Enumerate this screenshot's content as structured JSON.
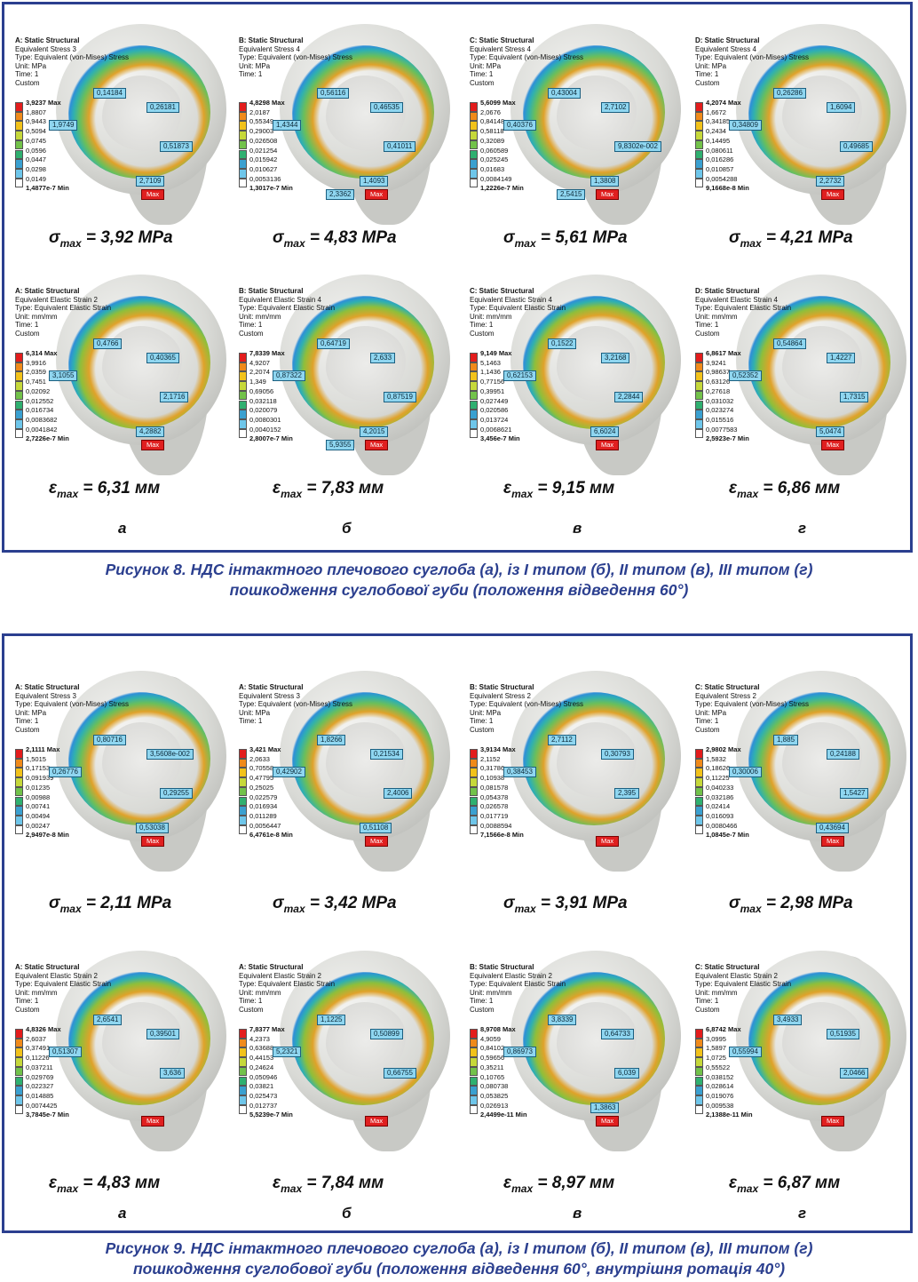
{
  "legend_colors": [
    "#e31c1c",
    "#f08a1a",
    "#f2c21a",
    "#c6d83a",
    "#72c24a",
    "#2fb070",
    "#3aa0d0",
    "#6ec6ea",
    "#ffffff"
  ],
  "fig8": {
    "panels": [
      {
        "title": "A: Static Structural",
        "result": "Equivalent Stress 3",
        "type": "Type: Equivalent (von-Mises) Stress",
        "unit": "Unit: MPa",
        "time": "Time: 1",
        "custom": "Custom",
        "levels": [
          "3,9237 Max",
          "1,8807",
          "0,9443",
          "0,5094",
          "0,0745",
          "0,0596",
          "0,0447",
          "0,0298",
          "0,0149",
          "1,4877e-7 Min"
        ],
        "probes": [
          "0,14184",
          "0,26181",
          "1,9749",
          "0,51873",
          "2,7109"
        ],
        "max_label": "Max",
        "formula_sym": "σ",
        "formula_sub": "max",
        "formula_val": "= 3,92 MPa"
      },
      {
        "title": "B: Static Structural",
        "result": "Equivalent Stress 4",
        "type": "Type: Equivalent (von-Mises) Stress",
        "unit": "Unit: MPa",
        "time": "Time: 1",
        "custom": "",
        "levels": [
          "4,8298 Max",
          "2,0187",
          "0,55349",
          "0,29003",
          "0,026508",
          "0,021254",
          "0,015942",
          "0,010627",
          "0,0053136",
          "1,3017e-7 Min"
        ],
        "probes": [
          "0,56116",
          "0,46535",
          "1,4344",
          "0,41011",
          "1,4093",
          "2,3362"
        ],
        "max_label": "Max",
        "formula_sym": "σ",
        "formula_sub": "max",
        "formula_val": "= 4,83 MPa"
      },
      {
        "title": "C: Static Structural",
        "result": "Equivalent Stress 4",
        "type": "Type: Equivalent (von-Mises) Stress",
        "unit": "Unit: MPa",
        "time": "Time: 1",
        "custom": "Custom",
        "levels": [
          "5,6099 Max",
          "2,0676",
          "0,84148",
          "0,58118",
          "0,32089",
          "0,060589",
          "0,025245",
          "0,01683",
          "0,0084149",
          "1,2226e-7 Min"
        ],
        "probes": [
          "0,43004",
          "2,7102",
          "0,40376",
          "9,8302e-002",
          "1,3808",
          "2,5415"
        ],
        "max_label": "Max",
        "formula_sym": "σ",
        "formula_sub": "max",
        "formula_val": "= 5,61 MPa"
      },
      {
        "title": "D: Static Structural",
        "result": "Equivalent Stress 4",
        "type": "Type: Equivalent (von-Mises) Stress",
        "unit": "Unit: MPa",
        "time": "Time: 1",
        "custom": "Custom",
        "levels": [
          "4,2074 Max",
          "1,6672",
          "0,34185",
          "0,2434",
          "0,14495",
          "0,080611",
          "0,016286",
          "0,010857",
          "0,0054288",
          "9,1668e-8 Min"
        ],
        "probes": [
          "0,26286",
          "1,6094",
          "0,34809",
          "0,49685",
          "2,2732"
        ],
        "max_label": "Max",
        "formula_sym": "σ",
        "formula_sub": "max",
        "formula_val": "= 4,21 MPa"
      },
      {
        "title": "A: Static Structural",
        "result": "Equivalent Elastic Strain 2",
        "type": "Type: Equivalent Elastic Strain",
        "unit": "Unit: mm/mm",
        "time": "Time: 1",
        "custom": "Custom",
        "levels": [
          "6,314 Max",
          "3,9916",
          "2,0359",
          "0,7451",
          "0,02092",
          "0,012552",
          "0,016734",
          "0,0083682",
          "0,0041842",
          "2,7226e-7 Min"
        ],
        "probes": [
          "0,4766",
          "0,40365",
          "3,1055",
          "2,1716",
          "4,2882"
        ],
        "max_label": "Max",
        "formula_sym": "ε",
        "formula_sub": "max",
        "formula_val": "= 6,31 мм"
      },
      {
        "title": "B: Static Structural",
        "result": "Equivalent Elastic Strain 4",
        "type": "Type: Equivalent Elastic Strain",
        "unit": "Unit: mm/mm",
        "time": "Time: 1",
        "custom": "Custom",
        "levels": [
          "7,8339 Max",
          "4,9207",
          "2,2074",
          "1,349",
          "0,69056",
          "0,032118",
          "0,020079",
          "0,0080301",
          "0,0040152",
          "2,8007e-7 Min"
        ],
        "probes": [
          "0,64719",
          "2,633",
          "0,87322",
          "0,87519",
          "4,2015",
          "5,9355"
        ],
        "max_label": "Max",
        "formula_sym": "ε",
        "formula_sub": "max",
        "formula_val": "= 7,83 мм"
      },
      {
        "title": "C: Static Structural",
        "result": "Equivalent Elastic Strain 4",
        "type": "Type: Equivalent Elastic Strain",
        "unit": "Unit: mm/mm",
        "time": "Time: 1",
        "custom": "Custom",
        "levels": [
          "9,149 Max",
          "5,1463",
          "1,1436",
          "0,77156",
          "0,39951",
          "0,027449",
          "0,020586",
          "0,013724",
          "0,0068621",
          "3,456e-7 Min"
        ],
        "probes": [
          "0,1522",
          "3,2168",
          "0,62153",
          "2,2844",
          "6,6024"
        ],
        "max_label": "Max",
        "formula_sym": "ε",
        "formula_sub": "max",
        "formula_val": "= 9,15 мм"
      },
      {
        "title": "D: Static Structural",
        "result": "Equivalent Elastic Strain 4",
        "type": "Type: Equivalent Elastic Strain",
        "unit": "Unit: mm/mm",
        "time": "Time: 1",
        "custom": "Custom",
        "levels": [
          "6,8617 Max",
          "3,9241",
          "0,98637",
          "0,63126",
          "0,27618",
          "0,031032",
          "0,023274",
          "0,015516",
          "0,0077583",
          "2,5923e-7 Min"
        ],
        "probes": [
          "0,54864",
          "1,4227",
          "0,52352",
          "1,7315",
          "5,0474"
        ],
        "max_label": "Max",
        "formula_sym": "ε",
        "formula_sub": "max",
        "formula_val": "= 6,86 мм"
      }
    ],
    "letters": [
      "а",
      "б",
      "в",
      "г"
    ],
    "caption_line1": "Рисунок 8. НДС інтактного плечового суглоба (а), із І типом (б), ІІ типом (в), ІІІ типом (г)",
    "caption_line2": "пошкодження суглобової губи (положення відведення 60°)"
  },
  "fig9": {
    "panels": [
      {
        "title": "A: Static Structural",
        "result": "Equivalent Stress 3",
        "type": "Type: Equivalent (von-Mises) Stress",
        "unit": "Unit: MPa",
        "time": "Time: 1",
        "custom": "Custom",
        "levels": [
          "2,1111 Max",
          "1,5015",
          "0,17153",
          "0,091939",
          "0,01235",
          "0,00988",
          "0,00741",
          "0,00494",
          "0,00247",
          "2,9497e-8 Min"
        ],
        "probes": [
          "0,80716",
          "3,5608e-002",
          "0,26776",
          "0,29255",
          "0,53038"
        ],
        "max_label": "Max",
        "formula_sym": "σ",
        "formula_sub": "max",
        "formula_val": "= 2,11 MPa"
      },
      {
        "title": "A: Static Structural",
        "result": "Equivalent Stress 3",
        "type": "Type: Equivalent (von-Mises) Stress",
        "unit": "Unit: MPa",
        "time": "Time: 1",
        "custom": "",
        "levels": [
          "3,421 Max",
          "2,0633",
          "0,70558",
          "0,47795",
          "0,25025",
          "0,022579",
          "0,016934",
          "0,011289",
          "0,0056447",
          "6,4761e-8 Min"
        ],
        "probes": [
          "1,8266",
          "0,21534",
          "0,42902",
          "2,4006",
          "0,51108"
        ],
        "max_label": "Max",
        "formula_sym": "σ",
        "formula_sub": "max",
        "formula_val": "= 3,42 MPa"
      },
      {
        "title": "B: Static Structural",
        "result": "Equivalent Stress 2",
        "type": "Type: Equivalent (von-Mises) Stress",
        "unit": "Unit: MPa",
        "time": "Time: 1",
        "custom": "Custom",
        "levels": [
          "3,9134 Max",
          "2,1152",
          "0,31786",
          "0,10938",
          "0,081578",
          "0,054378",
          "0,026578",
          "0,017719",
          "0,0088594",
          "7,1566e-8 Min"
        ],
        "probes": [
          "2,7112",
          "0,30793",
          "0,38453",
          "2,395"
        ],
        "max_label": "Max",
        "formula_sym": "σ",
        "formula_sub": "max",
        "formula_val": "= 3,91 MPa"
      },
      {
        "title": "C: Static Structural",
        "result": "Equivalent Stress 2",
        "type": "Type: Equivalent (von-Mises) Stress",
        "unit": "Unit: MPa",
        "time": "Time: 1",
        "custom": "Custom",
        "levels": [
          "2,9802 Max",
          "1,5832",
          "0,18626",
          "0,11225",
          "0,040233",
          "0,032186",
          "0,02414",
          "0,016093",
          "0,0080466",
          "1,0845e-7 Min"
        ],
        "probes": [
          "1,885",
          "0,24188",
          "0,30006",
          "1,5427",
          "0,43694"
        ],
        "max_label": "Max",
        "formula_sym": "σ",
        "formula_sub": "max",
        "formula_val": "= 2,98 MPa"
      },
      {
        "title": "A: Static Structural",
        "result": "Equivalent Elastic Strain 2",
        "type": "Type: Equivalent Elastic Strain",
        "unit": "Unit: mm/mm",
        "time": "Time: 1",
        "custom": "Custom",
        "levels": [
          "4,8326 Max",
          "2,6037",
          "0,37491",
          "0,11226",
          "0,037211",
          "0,029769",
          "0,022327",
          "0,014885",
          "0,0074425",
          "3,7845e-7 Min"
        ],
        "probes": [
          "2,6541",
          "0,39501",
          "0,51307",
          "3,636"
        ],
        "max_label": "Max",
        "formula_sym": "ε",
        "formula_sub": "max",
        "formula_val": "= 4,83 мм"
      },
      {
        "title": "A: Static Structural",
        "result": "Equivalent Elastic Strain 2",
        "type": "Type: Equivalent Elastic Strain",
        "unit": "Unit: mm/mm",
        "time": "Time: 1",
        "custom": "Custom",
        "levels": [
          "7,8377 Max",
          "4,2373",
          "0,63688",
          "0,44153",
          "0,24624",
          "0,050946",
          "0,03821",
          "0,025473",
          "0,012737",
          "5,5239e-7 Min"
        ],
        "probes": [
          "1,1225",
          "0,50899",
          "5,2321",
          "0,66755"
        ],
        "max_label": "Max",
        "formula_sym": "ε",
        "formula_sub": "max",
        "formula_val": "= 7,84 мм"
      },
      {
        "title": "B: Static Structural",
        "result": "Equivalent Elastic Strain 2",
        "type": "Type: Equivalent Elastic Strain",
        "unit": "Unit: mm/mm",
        "time": "Time: 1",
        "custom": "Custom",
        "levels": [
          "8,9708 Max",
          "4,9059",
          "0,84102",
          "0,59656",
          "0,35211",
          "0,10765",
          "0,080738",
          "0,053825",
          "0,026913",
          "2,4499e-11 Min"
        ],
        "probes": [
          "3,8339",
          "0,64733",
          "0,86973",
          "6,039",
          "1,3863"
        ],
        "max_label": "Max",
        "formula_sym": "ε",
        "formula_sub": "max",
        "formula_val": "= 8,97 мм"
      },
      {
        "title": "C: Static Structural",
        "result": "Equivalent Elastic Strain 2",
        "type": "Type: Equivalent Elastic Strain",
        "unit": "Unit: mm/mm",
        "time": "Time: 1",
        "custom": "Custom",
        "levels": [
          "6,8742 Max",
          "3,0995",
          "1,5897",
          "1,0725",
          "0,55522",
          "0,038152",
          "0,028614",
          "0,019076",
          "0,009538",
          "2,1388e-11 Min"
        ],
        "probes": [
          "3,4933",
          "0,51935",
          "0,55994",
          "2,0466"
        ],
        "max_label": "Max",
        "formula_sym": "ε",
        "formula_sub": "max",
        "formula_val": "= 6,87 мм"
      }
    ],
    "letters": [
      "а",
      "б",
      "в",
      "г"
    ],
    "caption_line1": "Рисунок 9. НДС інтактного плечового суглоба (а), із І типом (б), ІІ типом (в), ІІІ типом (г)",
    "caption_line2": "пошкодження суглобової губи (положення відведення 60°, внутрішня ротація 40°)"
  }
}
